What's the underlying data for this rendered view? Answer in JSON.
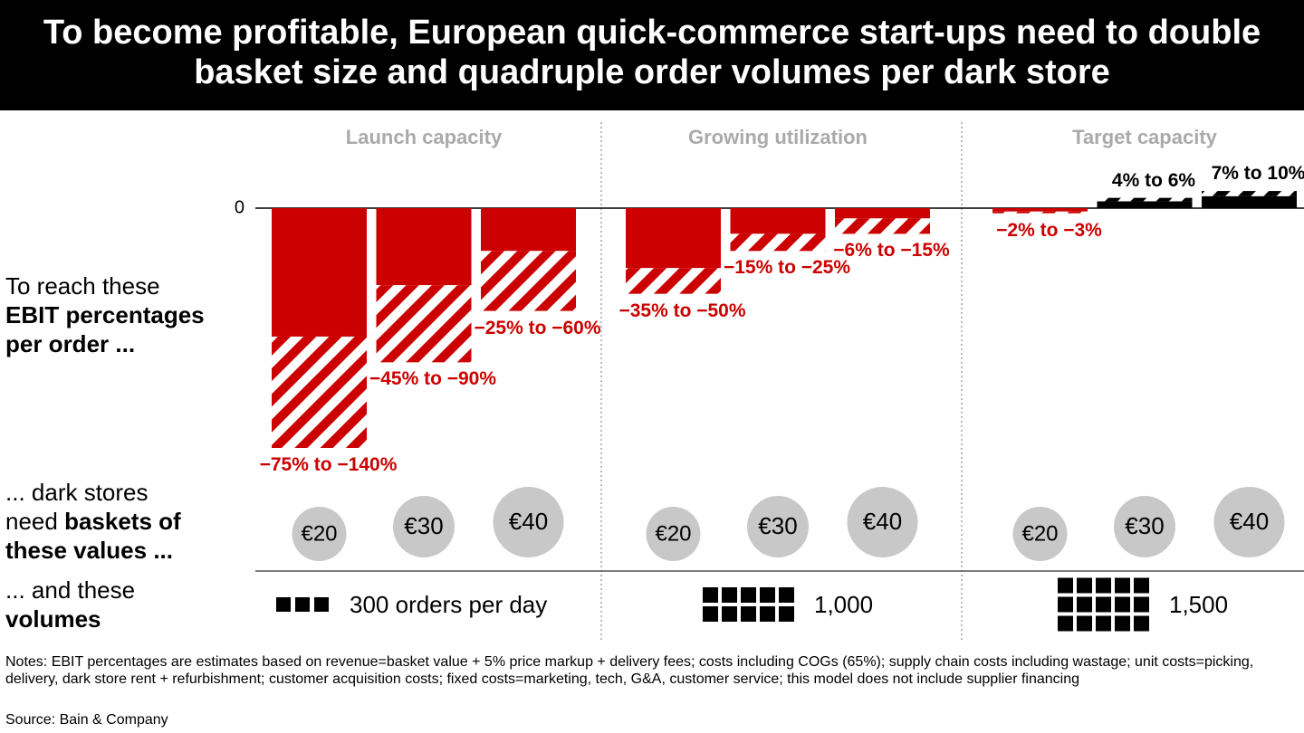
{
  "chart_data": {
    "type": "range-bar",
    "title": "To become profitable, European quick-commerce start-ups need to double basket size and quadruple order volumes per dark store",
    "ylim": [
      -140,
      12
    ],
    "yticks": [
      0
    ],
    "negative_color": "#cc0000",
    "positive_color": "#000000",
    "panels": [
      {
        "title": "Launch capacity",
        "categories": [
          "€20",
          "€30",
          "€40"
        ],
        "values": [
          [
            -75,
            -140
          ],
          [
            -45,
            -90
          ],
          [
            -25,
            -60
          ]
        ],
        "value_labels": [
          "−75% to −140%",
          "−45% to −90%",
          "−25% to −60%"
        ],
        "volume": {
          "value": 300,
          "label": "300 orders per day"
        }
      },
      {
        "title": "Growing utilization",
        "categories": [
          "€20",
          "€30",
          "€40"
        ],
        "values": [
          [
            -35,
            -50
          ],
          [
            -15,
            -25
          ],
          [
            -6,
            -15
          ]
        ],
        "value_labels": [
          "−35% to −50%",
          "−15% to −25%",
          "−6% to −15%"
        ],
        "volume": {
          "value": 1000,
          "label": "1,000"
        }
      },
      {
        "title": "Target capacity",
        "categories": [
          "€20",
          "€30",
          "€40"
        ],
        "values": [
          [
            -2,
            -3
          ],
          [
            4,
            6
          ],
          [
            7,
            10
          ]
        ],
        "value_labels": [
          "−2% to −3%",
          "4% to 6%",
          "7% to 10%"
        ],
        "volume": {
          "value": 1500,
          "label": "1,500"
        }
      }
    ]
  },
  "row_labels": [
    [
      "To reach these",
      "EBIT percentages",
      "per order ..."
    ],
    [
      "... dark stores",
      "need",
      "baskets of",
      "these values ..."
    ],
    [
      "... and these",
      "volumes"
    ]
  ],
  "notes": "Notes: EBIT percentages are estimates based on revenue=basket value + 5% price markup + delivery fees; costs including COGs (65%); supply chain costs including wastage; unit costs=picking, delivery, dark store rent + refurbishment; customer acquisition costs; fixed costs=marketing, tech, G&A, customer service; this model does not include supplier financing",
  "source": "Source: Bain & Company"
}
